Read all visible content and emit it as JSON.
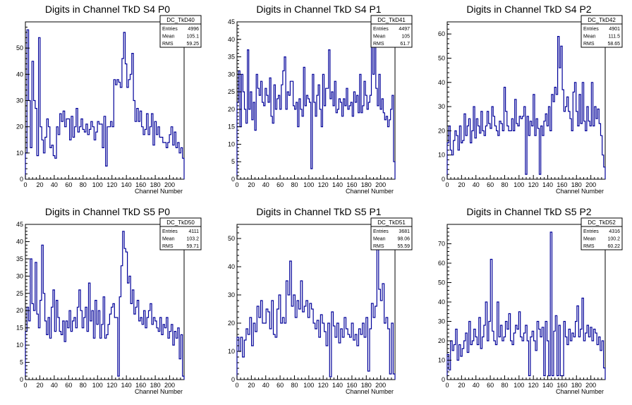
{
  "colors": {
    "line": "#000099",
    "frame": "#000000",
    "background": "#ffffff"
  },
  "chart_data": [
    {
      "type": "histogram",
      "title": "Digits in Channel TkD S4 P0",
      "xlabel": "Channel Number",
      "ylabel": "",
      "xlim": [
        0,
        220
      ],
      "ylim": [
        0,
        60
      ],
      "xticks": [
        "0",
        "20",
        "40",
        "60",
        "80",
        "100",
        "120",
        "140",
        "160",
        "180",
        "200"
      ],
      "yticks": [
        "0",
        "10",
        "20",
        "30",
        "40",
        "50"
      ],
      "stats": {
        "name": "DC_TkD40",
        "entries": "4996",
        "mean": "105.1",
        "rms": "59.25"
      },
      "series": [
        {
          "values": [
            10,
            57,
            30,
            12,
            45,
            30,
            27,
            9,
            54,
            20,
            15,
            10,
            16,
            23,
            20,
            12,
            13,
            9,
            8,
            20,
            17,
            25,
            22,
            26,
            20,
            23,
            23,
            15,
            24,
            16,
            20,
            27,
            18,
            20,
            23,
            19,
            18,
            21,
            17,
            19,
            22,
            20,
            15,
            18,
            22,
            21,
            21,
            12,
            24,
            5,
            20,
            20,
            22,
            20,
            38,
            36,
            38,
            37,
            35,
            46,
            56,
            44,
            35,
            38,
            40,
            48,
            30,
            22,
            27,
            22,
            26,
            20,
            17,
            19,
            25,
            17,
            20,
            25,
            13,
            22,
            17,
            20,
            16,
            16,
            14,
            14,
            12,
            14,
            17,
            20,
            13,
            18,
            12,
            14,
            10,
            12,
            8
          ]
        }
      ]
    },
    {
      "type": "histogram",
      "title": "Digits in Channel TkD S4 P1",
      "xlabel": "Channel Number",
      "ylabel": "",
      "xlim": [
        0,
        220
      ],
      "ylim": [
        0,
        45
      ],
      "xticks": [
        "0",
        "20",
        "40",
        "60",
        "80",
        "100",
        "120",
        "140",
        "160",
        "180",
        "200"
      ],
      "yticks": [
        "0",
        "5",
        "10",
        "15",
        "20",
        "25",
        "30",
        "35",
        "40",
        "45"
      ],
      "stats": {
        "name": "DC_TkD41",
        "entries": "4497",
        "mean": "105",
        "rms": "61.7"
      },
      "series": [
        {
          "values": [
            22,
            31,
            15,
            30,
            25,
            20,
            16,
            37,
            20,
            25,
            17,
            22,
            14,
            30,
            26,
            24,
            28,
            22,
            21,
            26,
            24,
            22,
            29,
            18,
            16,
            27,
            20,
            23,
            24,
            20,
            27,
            31,
            35,
            20,
            25,
            24,
            28,
            28,
            21,
            20,
            22,
            15,
            23,
            20,
            18,
            32,
            21,
            24,
            23,
            22,
            3,
            30,
            22,
            18,
            24,
            27,
            20,
            15,
            30,
            21,
            26,
            26,
            37,
            23,
            25,
            21,
            28,
            19,
            20,
            23,
            22,
            18,
            23,
            21,
            26,
            20,
            21,
            22,
            18,
            25,
            22,
            24,
            19,
            30,
            19,
            21,
            28,
            24,
            20,
            22,
            24,
            43,
            30,
            40,
            26,
            21,
            30,
            20,
            23,
            19,
            17,
            18,
            15,
            17,
            20,
            24,
            5
          ]
        }
      ]
    },
    {
      "type": "histogram",
      "title": "Digits in Channel TkD S4 P2",
      "xlabel": "Channel Number",
      "ylabel": "",
      "xlim": [
        0,
        220
      ],
      "ylim": [
        0,
        65
      ],
      "xticks": [
        "0",
        "20",
        "40",
        "60",
        "80",
        "100",
        "120",
        "140",
        "160",
        "180",
        "200"
      ],
      "yticks": [
        "0",
        "10",
        "20",
        "30",
        "40",
        "50",
        "60"
      ],
      "stats": {
        "name": "DC_TkD42",
        "entries": "4901",
        "mean": "111.5",
        "rms": "58.65"
      },
      "series": [
        {
          "values": [
            15,
            22,
            12,
            10,
            16,
            20,
            18,
            12,
            22,
            15,
            16,
            27,
            18,
            22,
            25,
            15,
            20,
            30,
            17,
            25,
            22,
            19,
            28,
            20,
            18,
            22,
            28,
            23,
            21,
            30,
            26,
            22,
            20,
            18,
            24,
            23,
            20,
            38,
            28,
            22,
            20,
            20,
            25,
            20,
            33,
            23,
            22,
            26,
            25,
            26,
            30,
            2,
            26,
            18,
            24,
            22,
            35,
            18,
            25,
            21,
            2,
            22,
            18,
            24,
            27,
            22,
            30,
            20,
            35,
            32,
            38,
            35,
            59,
            46,
            55,
            37,
            28,
            30,
            34,
            28,
            25,
            20,
            36,
            40,
            28,
            22,
            35,
            23,
            40,
            24,
            20,
            30,
            24,
            22,
            40,
            22,
            30,
            25,
            29,
            23,
            18,
            10,
            5
          ]
        }
      ]
    },
    {
      "type": "histogram",
      "title": "Digits in Channel TkD S5 P0",
      "xlabel": "Channel Number",
      "ylabel": "",
      "xlim": [
        0,
        220
      ],
      "ylim": [
        0,
        45
      ],
      "xticks": [
        "0",
        "20",
        "40",
        "60",
        "80",
        "100",
        "120",
        "140",
        "160",
        "180",
        "200"
      ],
      "yticks": [
        "0",
        "5",
        "10",
        "15",
        "20",
        "25",
        "30",
        "35",
        "40",
        "45"
      ],
      "stats": {
        "name": "DC_TkD50",
        "entries": "4111",
        "mean": "103.2",
        "rms": "59.71"
      },
      "series": [
        {
          "values": [
            14,
            21,
            17,
            35,
            22,
            20,
            34,
            19,
            15,
            23,
            39,
            25,
            17,
            13,
            18,
            12,
            21,
            26,
            14,
            23,
            18,
            14,
            13,
            17,
            11,
            17,
            15,
            20,
            14,
            17,
            18,
            15,
            21,
            26,
            20,
            15,
            18,
            21,
            14,
            28,
            17,
            20,
            12,
            23,
            16,
            20,
            12,
            16,
            24,
            12,
            13,
            16,
            19,
            21,
            22,
            18,
            18,
            1,
            24,
            33,
            43,
            38,
            37,
            28,
            30,
            22,
            26,
            19,
            21,
            23,
            17,
            18,
            16,
            20,
            15,
            18,
            20,
            22,
            16,
            18,
            17,
            15,
            14,
            18,
            13,
            16,
            15,
            18,
            12,
            14,
            16,
            10,
            14,
            12,
            15,
            6,
            13,
            1
          ]
        }
      ]
    },
    {
      "type": "histogram",
      "title": "Digits in Channel TkD S5 P1",
      "xlabel": "Channel Number",
      "ylabel": "",
      "xlim": [
        0,
        220
      ],
      "ylim": [
        0,
        55
      ],
      "xticks": [
        "0",
        "20",
        "40",
        "60",
        "80",
        "100",
        "120",
        "140",
        "160",
        "180",
        "200"
      ],
      "yticks": [
        "0",
        "10",
        "20",
        "30",
        "40",
        "50"
      ],
      "stats": {
        "name": "DC_TkD51",
        "entries": "3681",
        "mean": "98.06",
        "rms": "55.59"
      },
      "series": [
        {
          "values": [
            15,
            10,
            15,
            8,
            14,
            18,
            16,
            22,
            12,
            20,
            17,
            26,
            22,
            28,
            20,
            20,
            25,
            24,
            18,
            28,
            16,
            15,
            25,
            30,
            20,
            22,
            20,
            35,
            30,
            42,
            26,
            30,
            22,
            28,
            25,
            35,
            24,
            26,
            28,
            22,
            27,
            25,
            20,
            18,
            21,
            15,
            23,
            20,
            17,
            12,
            20,
            1,
            24,
            19,
            15,
            20,
            13,
            18,
            15,
            22,
            18,
            16,
            15,
            20,
            14,
            16,
            12,
            18,
            16,
            20,
            15,
            22,
            3,
            18,
            27,
            22,
            26,
            50,
            32,
            28,
            34,
            20,
            22,
            18,
            2,
            20,
            2
          ]
        }
      ]
    },
    {
      "type": "histogram",
      "title": "Digits in Channel TkD S5 P2",
      "xlabel": "Channel Number",
      "ylabel": "",
      "xlim": [
        0,
        220
      ],
      "ylim": [
        0,
        80
      ],
      "xticks": [
        "0",
        "20",
        "40",
        "60",
        "80",
        "100",
        "120",
        "140",
        "160",
        "180",
        "200"
      ],
      "yticks": [
        "0",
        "10",
        "20",
        "30",
        "40",
        "50",
        "60",
        "70"
      ],
      "stats": {
        "name": "DC_TkD52",
        "entries": "4316",
        "mean": "100.2",
        "rms": "60.22"
      },
      "series": [
        {
          "values": [
            13,
            5,
            20,
            15,
            18,
            26,
            10,
            18,
            12,
            16,
            20,
            24,
            14,
            30,
            18,
            20,
            26,
            22,
            18,
            32,
            16,
            22,
            28,
            40,
            20,
            30,
            62,
            25,
            20,
            18,
            40,
            22,
            28,
            20,
            22,
            30,
            26,
            34,
            20,
            18,
            24,
            28,
            26,
            35,
            22,
            20,
            24,
            28,
            20,
            2,
            22,
            25,
            20,
            15,
            30,
            26,
            22,
            27,
            2,
            30,
            20,
            2,
            76,
            2,
            25,
            33,
            2,
            28,
            2,
            2,
            30,
            22,
            18,
            26,
            20,
            24,
            22,
            30,
            38,
            22,
            26,
            42,
            20,
            24,
            28,
            22,
            27,
            20,
            26,
            24,
            18,
            22,
            15,
            20,
            6
          ]
        }
      ]
    }
  ]
}
